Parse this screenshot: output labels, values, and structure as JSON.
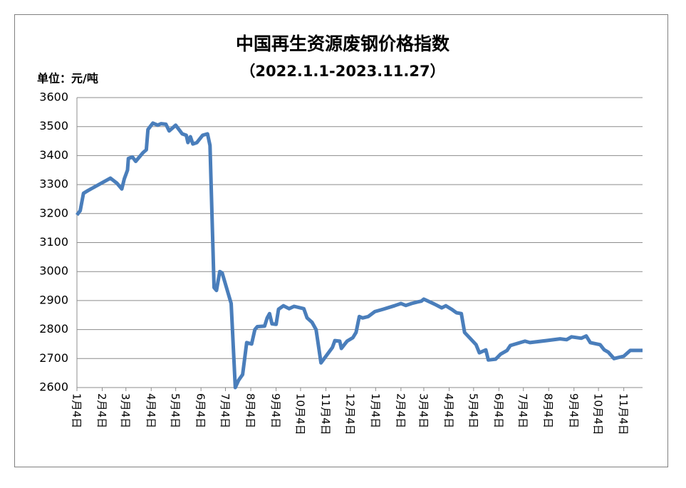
{
  "chart_data": {
    "type": "line",
    "title": "中国再生资源废钢价格指数",
    "subtitle": "（2022.1.1-2023.11.27）",
    "y_label": "单位：元/吨",
    "ylim": [
      2600,
      3600
    ],
    "yticks": [
      2600,
      2700,
      2800,
      2900,
      3000,
      3100,
      3200,
      3300,
      3400,
      3500,
      3600
    ],
    "grid": true,
    "xticks": [
      "1月4日",
      "2月4日",
      "3月4日",
      "4月4日",
      "5月4日",
      "6月4日",
      "7月4日",
      "8月4日",
      "9月4日",
      "10月4日",
      "11月4日",
      "12月4日",
      "1月4日",
      "2月4日",
      "3月4日",
      "4月4日",
      "5月4日",
      "6月4日",
      "7月4日",
      "8月4日",
      "9月4日",
      "10月4日",
      "11月4日"
    ],
    "x": [
      "1月4日",
      "1月8日",
      "1月12日",
      "1月18日",
      "2月14日",
      "2月22日",
      "2月28日",
      "3月2日",
      "3月6日",
      "3月7日",
      "3月12日",
      "3月16日",
      "3月25日",
      "3月29日",
      "3月31日",
      "4月6日",
      "4月12日",
      "4月16日",
      "4月22日",
      "4月26日",
      "4月30日",
      "5月4日",
      "5月12日",
      "5月17日",
      "5月19日",
      "5月22日",
      "5月25日",
      "5月30日",
      "6月6日",
      "6月12日",
      "6月15日",
      "6月20日",
      "6月23日",
      "6月27日",
      "6月30日",
      "7月11日",
      "7月16日",
      "7月20日",
      "7月25日",
      "7月30日",
      "8月5日",
      "8月9日",
      "8月12日",
      "8月21日",
      "8月24日",
      "8月27日",
      "8月30日",
      "9月4日",
      "9月7日",
      "9月13日",
      "9月20日",
      "9月26日",
      "10月8日",
      "10月12日",
      "10月18日",
      "10月23日",
      "10月29日",
      "11月12日",
      "11月15日",
      "11月21日",
      "11月23日",
      "11月30日",
      "12月7日",
      "12月11日",
      "12月15日",
      "12月19日",
      "12月26日",
      "1月3日",
      "1月13日",
      "1月27日",
      "2月4日",
      "2月10日",
      "2月17日",
      "2月24日",
      "3月1日",
      "3月4日",
      "3月17日",
      "3月26日",
      "3月31日",
      "4月7日",
      "4月13日",
      "4月19日",
      "4月23日",
      "5月7日",
      "5月11日",
      "5月19日",
      "5月22日",
      "5月31日",
      "6月6日",
      "6月14日",
      "6月18日",
      "7月6日",
      "7月12日",
      "8月1日",
      "8月18日",
      "8月26日",
      "9月1日",
      "9月13日",
      "9月19日",
      "9月24日",
      "10月6日",
      "10月11日",
      "10月16日",
      "10月23日",
      "11月4日",
      "11月12日",
      "11月27日"
    ],
    "series": [
      {
        "name": "废钢价格指数",
        "color": "#4a7ebb",
        "values": [
          3195,
          3210,
          3270,
          3280,
          3322,
          3305,
          3285,
          3320,
          3350,
          3390,
          3395,
          3380,
          3410,
          3420,
          3490,
          3512,
          3505,
          3510,
          3508,
          3485,
          3495,
          3505,
          3475,
          3470,
          3445,
          3465,
          3440,
          3445,
          3470,
          3475,
          3435,
          2945,
          2935,
          3000,
          2995,
          2890,
          2600,
          2625,
          2645,
          2755,
          2750,
          2800,
          2810,
          2812,
          2840,
          2855,
          2820,
          2818,
          2870,
          2882,
          2872,
          2880,
          2872,
          2840,
          2825,
          2800,
          2685,
          2738,
          2762,
          2760,
          2735,
          2760,
          2772,
          2790,
          2845,
          2840,
          2845,
          2862,
          2870,
          2882,
          2890,
          2883,
          2890,
          2895,
          2898,
          2905,
          2888,
          2875,
          2882,
          2870,
          2858,
          2855,
          2790,
          2748,
          2720,
          2730,
          2695,
          2698,
          2715,
          2728,
          2745,
          2760,
          2755,
          2762,
          2768,
          2765,
          2775,
          2770,
          2778,
          2755,
          2748,
          2730,
          2722,
          2700,
          2708,
          2728,
          2728
        ]
      }
    ]
  }
}
